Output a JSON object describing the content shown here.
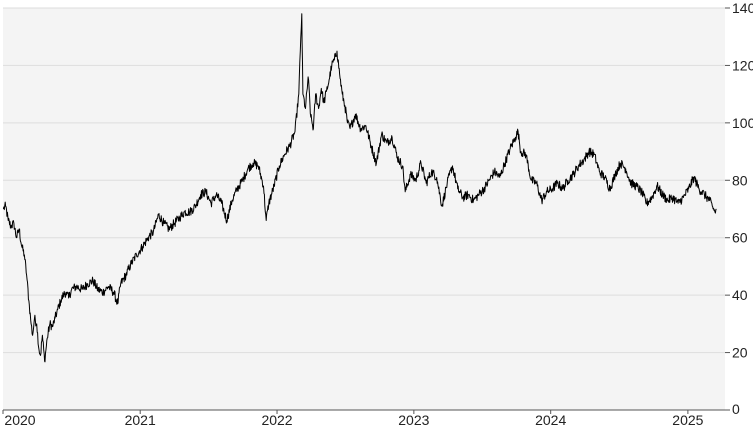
{
  "chart_data": {
    "type": "line",
    "title": "",
    "xlabel": "",
    "ylabel": "",
    "ylim": [
      0,
      140
    ],
    "yticks": [
      0,
      20,
      40,
      60,
      80,
      100,
      120,
      140
    ],
    "xlim": [
      "2020-01-01",
      "2025-04-10"
    ],
    "xticks": [
      {
        "date": "2020-01-01",
        "label": "2020"
      },
      {
        "date": "2021-01-01",
        "label": "2021"
      },
      {
        "date": "2022-01-01",
        "label": "2022"
      },
      {
        "date": "2023-01-01",
        "label": "2023"
      },
      {
        "date": "2024-01-01",
        "label": "2024"
      },
      {
        "date": "2025-01-01",
        "label": "2025"
      }
    ],
    "grid": true,
    "legend": "none",
    "colors": {
      "line": "#000000",
      "plot_background": "#f4f4f4",
      "grid": "#dddddd",
      "axis": "#555555"
    },
    "series": [
      {
        "name": "",
        "points": [
          [
            "2020-01-02",
            70
          ],
          [
            "2020-01-08",
            71
          ],
          [
            "2020-01-15",
            66
          ],
          [
            "2020-01-22",
            64
          ],
          [
            "2020-01-30",
            65
          ],
          [
            "2020-02-06",
            60
          ],
          [
            "2020-02-13",
            63
          ],
          [
            "2020-02-20",
            57
          ],
          [
            "2020-02-27",
            54
          ],
          [
            "2020-03-04",
            47
          ],
          [
            "2020-03-10",
            38
          ],
          [
            "2020-03-16",
            30
          ],
          [
            "2020-03-20",
            26
          ],
          [
            "2020-03-25",
            32
          ],
          [
            "2020-03-31",
            30
          ],
          [
            "2020-04-06",
            21
          ],
          [
            "2020-04-10",
            19
          ],
          [
            "2020-04-15",
            26
          ],
          [
            "2020-04-21",
            17
          ],
          [
            "2020-04-28",
            25
          ],
          [
            "2020-05-05",
            30
          ],
          [
            "2020-05-12",
            29
          ],
          [
            "2020-05-19",
            32
          ],
          [
            "2020-05-26",
            35
          ],
          [
            "2020-06-03",
            38
          ],
          [
            "2020-06-10",
            40
          ],
          [
            "2020-06-17",
            41
          ],
          [
            "2020-06-24",
            39
          ],
          [
            "2020-07-02",
            42
          ],
          [
            "2020-07-15",
            43
          ],
          [
            "2020-07-30",
            42
          ],
          [
            "2020-08-14",
            44
          ],
          [
            "2020-08-28",
            45
          ],
          [
            "2020-09-10",
            42
          ],
          [
            "2020-09-24",
            41
          ],
          [
            "2020-10-08",
            43
          ],
          [
            "2020-10-22",
            41
          ],
          [
            "2020-11-02",
            37
          ],
          [
            "2020-11-10",
            44
          ],
          [
            "2020-11-24",
            47
          ],
          [
            "2020-12-08",
            51
          ],
          [
            "2020-12-22",
            54
          ],
          [
            "2021-01-08",
            57
          ],
          [
            "2021-01-22",
            60
          ],
          [
            "2021-02-05",
            62
          ],
          [
            "2021-02-19",
            68
          ],
          [
            "2021-03-05",
            65
          ],
          [
            "2021-03-19",
            63
          ],
          [
            "2021-04-02",
            65
          ],
          [
            "2021-04-16",
            67
          ],
          [
            "2021-04-30",
            69
          ],
          [
            "2021-05-14",
            69
          ],
          [
            "2021-05-28",
            71
          ],
          [
            "2021-06-11",
            75
          ],
          [
            "2021-06-25",
            76
          ],
          [
            "2021-07-09",
            72
          ],
          [
            "2021-07-23",
            75
          ],
          [
            "2021-08-06",
            72
          ],
          [
            "2021-08-20",
            66
          ],
          [
            "2021-09-03",
            73
          ],
          [
            "2021-09-17",
            77
          ],
          [
            "2021-10-01",
            80
          ],
          [
            "2021-10-15",
            84
          ],
          [
            "2021-10-29",
            86
          ],
          [
            "2021-11-12",
            85
          ],
          [
            "2021-11-26",
            78
          ],
          [
            "2021-12-03",
            66
          ],
          [
            "2021-12-10",
            72
          ],
          [
            "2021-12-24",
            78
          ],
          [
            "2022-01-07",
            85
          ],
          [
            "2022-01-21",
            89
          ],
          [
            "2022-02-04",
            92
          ],
          [
            "2022-02-18",
            97
          ],
          [
            "2022-02-28",
            110
          ],
          [
            "2022-03-04",
            125
          ],
          [
            "2022-03-08",
            138
          ],
          [
            "2022-03-11",
            110
          ],
          [
            "2022-03-18",
            105
          ],
          [
            "2022-03-25",
            116
          ],
          [
            "2022-04-01",
            102
          ],
          [
            "2022-04-08",
            98
          ],
          [
            "2022-04-14",
            110
          ],
          [
            "2022-04-22",
            105
          ],
          [
            "2022-04-29",
            112
          ],
          [
            "2022-05-06",
            107
          ],
          [
            "2022-05-13",
            111
          ],
          [
            "2022-05-20",
            115
          ],
          [
            "2022-05-27",
            120
          ],
          [
            "2022-06-03",
            122
          ],
          [
            "2022-06-10",
            125
          ],
          [
            "2022-06-17",
            117
          ],
          [
            "2022-06-24",
            110
          ],
          [
            "2022-07-01",
            106
          ],
          [
            "2022-07-08",
            100
          ],
          [
            "2022-07-15",
            98
          ],
          [
            "2022-07-29",
            103
          ],
          [
            "2022-08-12",
            98
          ],
          [
            "2022-08-26",
            99
          ],
          [
            "2022-09-09",
            92
          ],
          [
            "2022-09-23",
            86
          ],
          [
            "2022-10-07",
            96
          ],
          [
            "2022-10-21",
            93
          ],
          [
            "2022-11-04",
            95
          ],
          [
            "2022-11-18",
            88
          ],
          [
            "2022-12-02",
            85
          ],
          [
            "2022-12-09",
            76
          ],
          [
            "2022-12-23",
            82
          ],
          [
            "2023-01-06",
            80
          ],
          [
            "2023-01-20",
            86
          ],
          [
            "2023-02-03",
            79
          ],
          [
            "2023-02-17",
            83
          ],
          [
            "2023-03-03",
            81
          ],
          [
            "2023-03-17",
            71
          ],
          [
            "2023-03-31",
            79
          ],
          [
            "2023-04-14",
            85
          ],
          [
            "2023-04-28",
            77
          ],
          [
            "2023-05-12",
            74
          ],
          [
            "2023-05-26",
            75
          ],
          [
            "2023-06-09",
            73
          ],
          [
            "2023-06-23",
            75
          ],
          [
            "2023-07-07",
            77
          ],
          [
            "2023-07-21",
            80
          ],
          [
            "2023-08-04",
            83
          ],
          [
            "2023-08-18",
            81
          ],
          [
            "2023-09-01",
            86
          ],
          [
            "2023-09-15",
            91
          ],
          [
            "2023-09-29",
            95
          ],
          [
            "2023-10-06",
            97
          ],
          [
            "2023-10-13",
            90
          ],
          [
            "2023-10-27",
            89
          ],
          [
            "2023-11-10",
            80
          ],
          [
            "2023-11-24",
            79
          ],
          [
            "2023-12-08",
            73
          ],
          [
            "2023-12-22",
            76
          ],
          [
            "2024-01-05",
            77
          ],
          [
            "2024-01-19",
            79
          ],
          [
            "2024-02-02",
            77
          ],
          [
            "2024-02-16",
            80
          ],
          [
            "2024-03-01",
            82
          ],
          [
            "2024-03-15",
            85
          ],
          [
            "2024-03-29",
            87
          ],
          [
            "2024-04-12",
            90
          ],
          [
            "2024-04-26",
            89
          ],
          [
            "2024-05-10",
            83
          ],
          [
            "2024-05-24",
            81
          ],
          [
            "2024-06-07",
            77
          ],
          [
            "2024-06-21",
            82
          ],
          [
            "2024-07-05",
            86
          ],
          [
            "2024-07-19",
            84
          ],
          [
            "2024-08-02",
            79
          ],
          [
            "2024-08-16",
            78
          ],
          [
            "2024-08-30",
            76
          ],
          [
            "2024-09-13",
            72
          ],
          [
            "2024-09-27",
            74
          ],
          [
            "2024-10-11",
            78
          ],
          [
            "2024-10-25",
            75
          ],
          [
            "2024-11-08",
            73
          ],
          [
            "2024-11-22",
            74
          ],
          [
            "2024-12-06",
            72
          ],
          [
            "2024-12-20",
            74
          ],
          [
            "2025-01-03",
            77
          ],
          [
            "2025-01-17",
            81
          ],
          [
            "2025-01-31",
            77
          ],
          [
            "2025-02-14",
            75
          ],
          [
            "2025-02-28",
            73
          ],
          [
            "2025-03-07",
            71
          ],
          [
            "2025-03-14",
            69
          ],
          [
            "2025-03-18",
            70
          ]
        ]
      }
    ]
  }
}
